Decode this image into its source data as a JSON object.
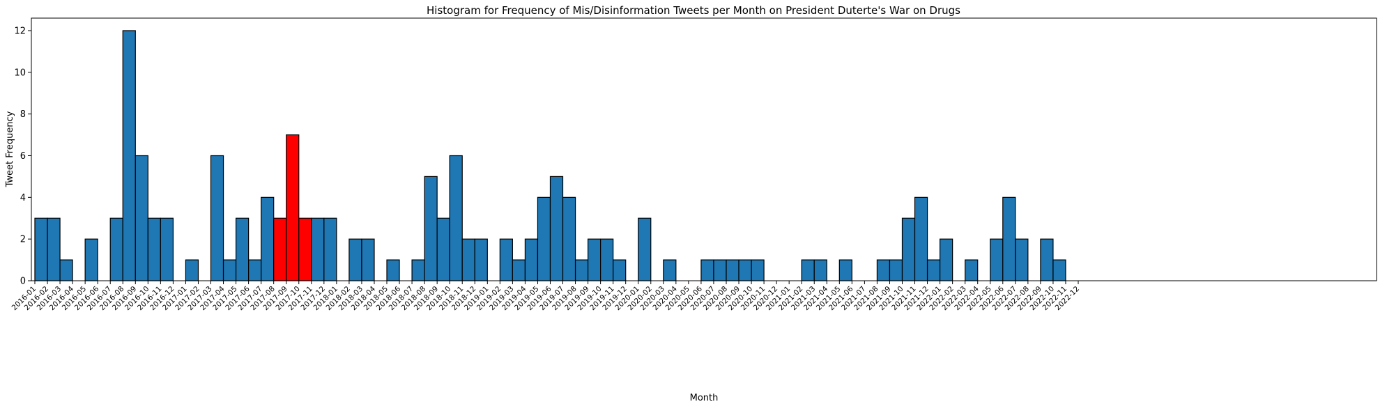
{
  "chart_data": {
    "type": "bar",
    "title": "Histogram for Frequency of Mis/Disinformation Tweets per Month on President Duterte's War on Drugs",
    "xlabel": "Month",
    "ylabel": "Tweet Frequency",
    "ylim": [
      0,
      12.6
    ],
    "yticks": [
      0,
      2,
      4,
      6,
      8,
      10,
      12
    ],
    "grid": false,
    "colors": {
      "default": "#1f77b4",
      "highlight": "#ff0000",
      "edge": "#000000"
    },
    "highlighted_categories": [
      "2017-08",
      "2017-09",
      "2017-10"
    ],
    "categories": [
      "2016-01",
      "2016-02",
      "2016-03",
      "2016-04",
      "2016-05",
      "2016-06",
      "2016-07",
      "2016-08",
      "2016-09",
      "2016-10",
      "2016-11",
      "2016-12",
      "2017-01",
      "2017-02",
      "2017-03",
      "2017-04",
      "2017-05",
      "2017-06",
      "2017-07",
      "2017-08",
      "2017-09",
      "2017-10",
      "2017-11",
      "2017-12",
      "2018-01",
      "2018-02",
      "2018-03",
      "2018-04",
      "2018-05",
      "2018-06",
      "2018-07",
      "2018-08",
      "2018-09",
      "2018-10",
      "2018-11",
      "2018-12",
      "2019-01",
      "2019-02",
      "2019-03",
      "2019-04",
      "2019-05",
      "2019-06",
      "2019-07",
      "2019-08",
      "2019-09",
      "2019-10",
      "2019-11",
      "2019-12",
      "2020-01",
      "2020-02",
      "2020-03",
      "2020-04",
      "2020-05",
      "2020-06",
      "2020-07",
      "2020-08",
      "2020-09",
      "2020-10",
      "2020-11",
      "2020-12",
      "2021-01",
      "2021-02",
      "2021-03",
      "2021-04",
      "2021-05",
      "2021-06",
      "2021-07",
      "2021-08",
      "2021-09",
      "2021-10",
      "2021-11",
      "2021-12",
      "2022-01",
      "2022-02",
      "2022-03",
      "2022-04",
      "2022-05",
      "2022-06",
      "2022-07",
      "2022-08",
      "2022-09",
      "2022-10",
      "2022-11",
      "2022-12"
    ],
    "values": [
      3,
      3,
      1,
      0,
      2,
      0,
      3,
      12,
      6,
      3,
      3,
      0,
      1,
      0,
      6,
      1,
      3,
      1,
      4,
      3,
      7,
      3,
      3,
      3,
      0,
      2,
      2,
      0,
      1,
      0,
      1,
      5,
      3,
      6,
      2,
      2,
      0,
      2,
      1,
      2,
      4,
      5,
      4,
      1,
      2,
      2,
      1,
      0,
      3,
      0,
      1,
      0,
      0,
      1,
      1,
      1,
      1,
      1,
      0,
      0,
      0,
      1,
      1,
      0,
      1,
      0,
      0,
      1,
      1,
      3,
      4,
      1,
      2,
      0,
      1,
      0,
      2,
      4,
      2,
      0,
      2,
      1,
      0,
      0
    ]
  }
}
